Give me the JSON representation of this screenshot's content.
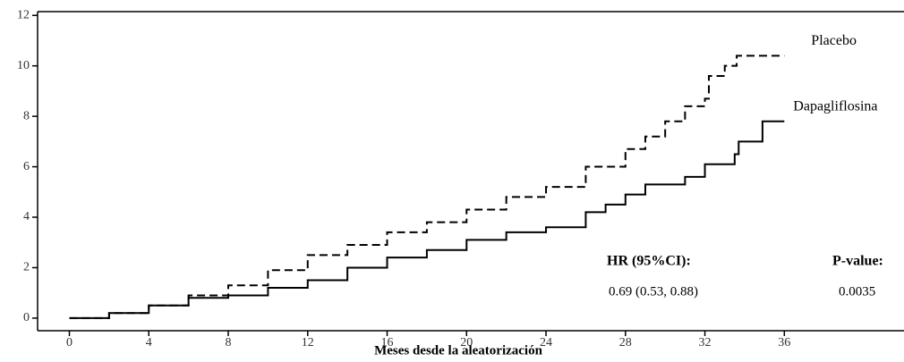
{
  "chart_data": {
    "type": "step",
    "xlabel": "Meses desde la aleatorización",
    "xlim": [
      -1.6,
      41.8
    ],
    "ylim": [
      -0.5,
      12.15
    ],
    "xticks": [
      0,
      4,
      8,
      12,
      16,
      20,
      24,
      28,
      32,
      36
    ],
    "yticks": [
      0,
      2,
      4,
      6,
      8,
      10,
      12
    ],
    "series": [
      {
        "name": "Placebo",
        "color": "#000000",
        "dashed": true,
        "x": [
          0,
          2,
          4,
          6,
          8,
          10,
          12,
          14,
          16,
          18,
          20,
          22,
          24,
          26,
          28,
          29,
          30,
          31,
          32,
          32.2,
          33,
          33.6,
          36
        ],
        "values": [
          0,
          0.2,
          0.5,
          0.9,
          1.3,
          1.9,
          2.5,
          2.9,
          3.4,
          3.8,
          4.3,
          4.8,
          5.2,
          6.0,
          6.7,
          7.2,
          7.8,
          8.4,
          8.7,
          9.6,
          10.0,
          10.4,
          10.4
        ]
      },
      {
        "name": "Dapagliflosina",
        "color": "#000000",
        "dashed": false,
        "x": [
          0,
          2,
          4,
          6,
          8,
          10,
          12,
          14,
          16,
          18,
          20,
          22,
          24,
          25.3,
          26,
          27,
          28,
          29,
          31,
          32,
          33.5,
          33.7,
          34.9,
          36
        ],
        "values": [
          0,
          0.2,
          0.5,
          0.8,
          0.9,
          1.2,
          1.5,
          2.0,
          2.4,
          2.7,
          3.1,
          3.4,
          3.6,
          3.6,
          4.2,
          4.5,
          4.9,
          5.3,
          5.6,
          6.1,
          6.5,
          7.0,
          7.8,
          7.8
        ]
      }
    ],
    "annotations": [
      "HR (95%CI):",
      "P-value:",
      "0.69 (0.53, 0.88)",
      "0.0035"
    ]
  }
}
